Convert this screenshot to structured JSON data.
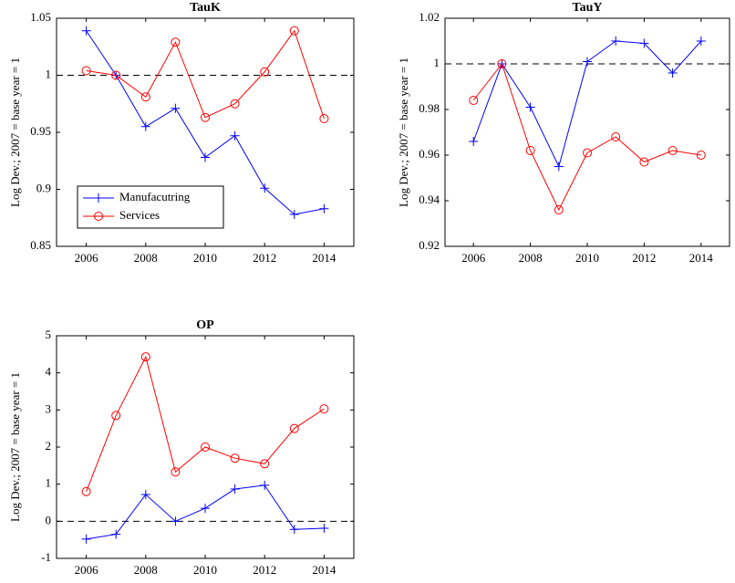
{
  "chart_data": [
    {
      "type": "line",
      "title": "TauK",
      "y_label": "Log Dev.; 2007 = base year = 1",
      "x": [
        2006,
        2007,
        2008,
        2009,
        2010,
        2011,
        2012,
        2013,
        2014
      ],
      "xlim": [
        2005,
        2015
      ],
      "xticks": [
        2006,
        2008,
        2010,
        2012,
        2014
      ],
      "ylim": [
        0.85,
        1.05
      ],
      "yticks": [
        0.85,
        0.9,
        0.95,
        1,
        1.05
      ],
      "reference_line": 1,
      "legend": "lower left",
      "series": [
        {
          "name": "Manufacutring",
          "color": "#0000ff",
          "marker": "+",
          "values": [
            1.039,
            1.0,
            0.955,
            0.971,
            0.928,
            0.947,
            0.901,
            0.878,
            0.883
          ]
        },
        {
          "name": "Services",
          "color": "#ff0000",
          "marker": "o",
          "values": [
            1.004,
            1.0,
            0.981,
            1.029,
            0.963,
            0.975,
            1.003,
            1.039,
            0.962
          ]
        }
      ]
    },
    {
      "type": "line",
      "title": "TauY",
      "y_label": "Log Dev.; 2007 = base year = 1",
      "x": [
        2006,
        2007,
        2008,
        2009,
        2010,
        2011,
        2012,
        2013,
        2014
      ],
      "xlim": [
        2005,
        2015
      ],
      "xticks": [
        2006,
        2008,
        2010,
        2012,
        2014
      ],
      "ylim": [
        0.92,
        1.02
      ],
      "yticks": [
        0.92,
        0.94,
        0.96,
        0.98,
        1,
        1.02
      ],
      "reference_line": 1,
      "series": [
        {
          "name": "Manufacutring",
          "color": "#0000ff",
          "marker": "+",
          "values": [
            0.966,
            1.0,
            0.981,
            0.955,
            1.001,
            1.01,
            1.009,
            0.996,
            1.01
          ]
        },
        {
          "name": "Services",
          "color": "#ff0000",
          "marker": "o",
          "values": [
            0.984,
            1.0,
            0.962,
            0.936,
            0.961,
            0.968,
            0.957,
            0.962,
            0.96
          ]
        }
      ]
    },
    {
      "type": "line",
      "title": "OP",
      "y_label": "Log Dev.; 2007 = base year = 1",
      "x": [
        2006,
        2007,
        2008,
        2009,
        2010,
        2011,
        2012,
        2013,
        2014
      ],
      "xlim": [
        2005,
        2015
      ],
      "xticks": [
        2006,
        2008,
        2010,
        2012,
        2014
      ],
      "ylim": [
        -1,
        5
      ],
      "yticks": [
        -1,
        0,
        1,
        2,
        3,
        4,
        5
      ],
      "reference_line": 0,
      "series": [
        {
          "name": "Manufacutring",
          "color": "#0000ff",
          "marker": "+",
          "values": [
            -0.48,
            -0.35,
            0.72,
            0.0,
            0.35,
            0.87,
            0.97,
            -0.22,
            -0.19
          ]
        },
        {
          "name": "Services",
          "color": "#ff0000",
          "marker": "o",
          "values": [
            0.8,
            2.85,
            4.43,
            1.33,
            2.0,
            1.7,
            1.55,
            2.5,
            3.03
          ]
        }
      ]
    }
  ]
}
